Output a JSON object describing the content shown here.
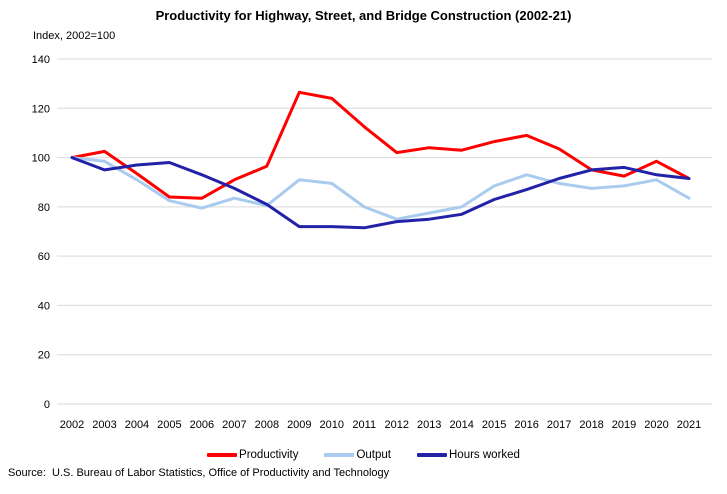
{
  "chart_data": {
    "type": "line",
    "title": "Productivity for Highway, Street, and Bridge Construction (2002-21)",
    "y_axis_label": "Index, 2002=100",
    "xlabel": "",
    "ylabel": "Index, 2002=100",
    "x": [
      2002,
      2003,
      2004,
      2005,
      2006,
      2007,
      2008,
      2009,
      2010,
      2011,
      2012,
      2013,
      2014,
      2015,
      2016,
      2017,
      2018,
      2019,
      2020,
      2021
    ],
    "series": [
      {
        "name": "Productivity",
        "color": "#FF0000",
        "values": [
          100,
          102.5,
          93.5,
          84,
          83.5,
          91,
          96.5,
          126.5,
          124,
          112.5,
          102,
          104,
          103,
          106.5,
          109,
          103.5,
          95,
          92.5,
          98.5,
          91.5
        ]
      },
      {
        "name": "Output",
        "color": "#A9CCEE",
        "values": [
          100,
          98.5,
          91,
          82.5,
          79.5,
          83.5,
          80.5,
          91,
          89.5,
          80,
          75,
          77.5,
          80,
          88.5,
          93,
          89.5,
          87.5,
          88.5,
          91,
          83.5
        ]
      },
      {
        "name": "Hours worked",
        "color": "#2222A8",
        "values": [
          100,
          95,
          97,
          98,
          93,
          87.5,
          81,
          72,
          72,
          71.5,
          74,
          75,
          77,
          83,
          87,
          91.5,
          95,
          96,
          93,
          91.5
        ]
      }
    ],
    "ylim": [
      0,
      140
    ],
    "y_ticks": [
      0,
      20,
      40,
      60,
      80,
      100,
      120,
      140
    ],
    "grid": "horizontal",
    "gridline_color": "#D9D9D9",
    "legend_position": "bottom"
  },
  "source": {
    "text": "Source:  U.S. Bureau of Labor Statistics, Office of Productivity and Technology"
  }
}
